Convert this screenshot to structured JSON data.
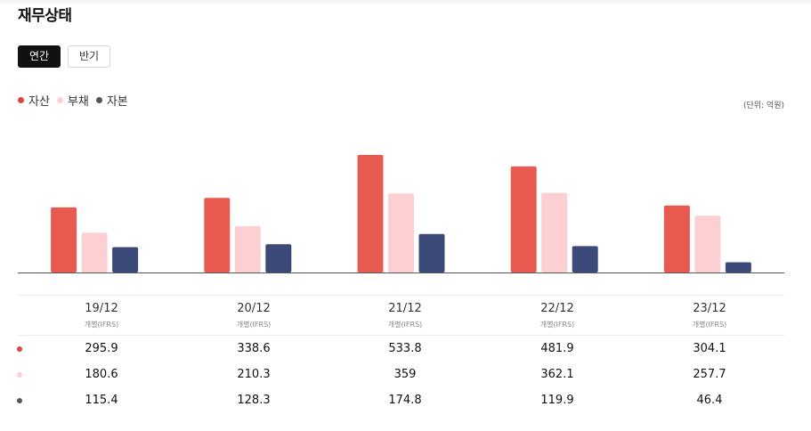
{
  "title": "재무상태",
  "tabs": [
    {
      "label": "연간",
      "active": true
    },
    {
      "label": "반기",
      "active": false
    }
  ],
  "unit_label": "(단위: 억원)",
  "colors": {
    "asset": "#e85a50",
    "liability": "#fccfd2",
    "equity": "#3b4a78",
    "axis": "#555555"
  },
  "chart_data": {
    "type": "bar",
    "categories": [
      "19/12",
      "20/12",
      "21/12",
      "22/12",
      "23/12"
    ],
    "category_sub": "개별(IFRS)",
    "series": [
      {
        "name": "자산",
        "color": "#e85a50",
        "values": [
          295.9,
          338.6,
          533.8,
          481.9,
          304.1
        ]
      },
      {
        "name": "부채",
        "color": "#fccfd2",
        "values": [
          180.6,
          210.3,
          359,
          362.1,
          257.7
        ]
      },
      {
        "name": "자본",
        "color": "#3b4a78",
        "values": [
          115.4,
          128.3,
          174.8,
          119.9,
          46.4
        ]
      }
    ],
    "ylim": [
      0,
      560
    ],
    "legend": "top-left",
    "grid": false
  },
  "table": {
    "rows": [
      {
        "dot_color": "#e04438",
        "values": [
          "295.9",
          "338.6",
          "533.8",
          "481.9",
          "304.1"
        ]
      },
      {
        "dot_color": "#fccfd2",
        "values": [
          "180.6",
          "210.3",
          "359",
          "362.1",
          "257.7"
        ]
      },
      {
        "dot_color": "#555555",
        "values": [
          "115.4",
          "128.3",
          "174.8",
          "119.9",
          "46.4"
        ]
      }
    ]
  }
}
